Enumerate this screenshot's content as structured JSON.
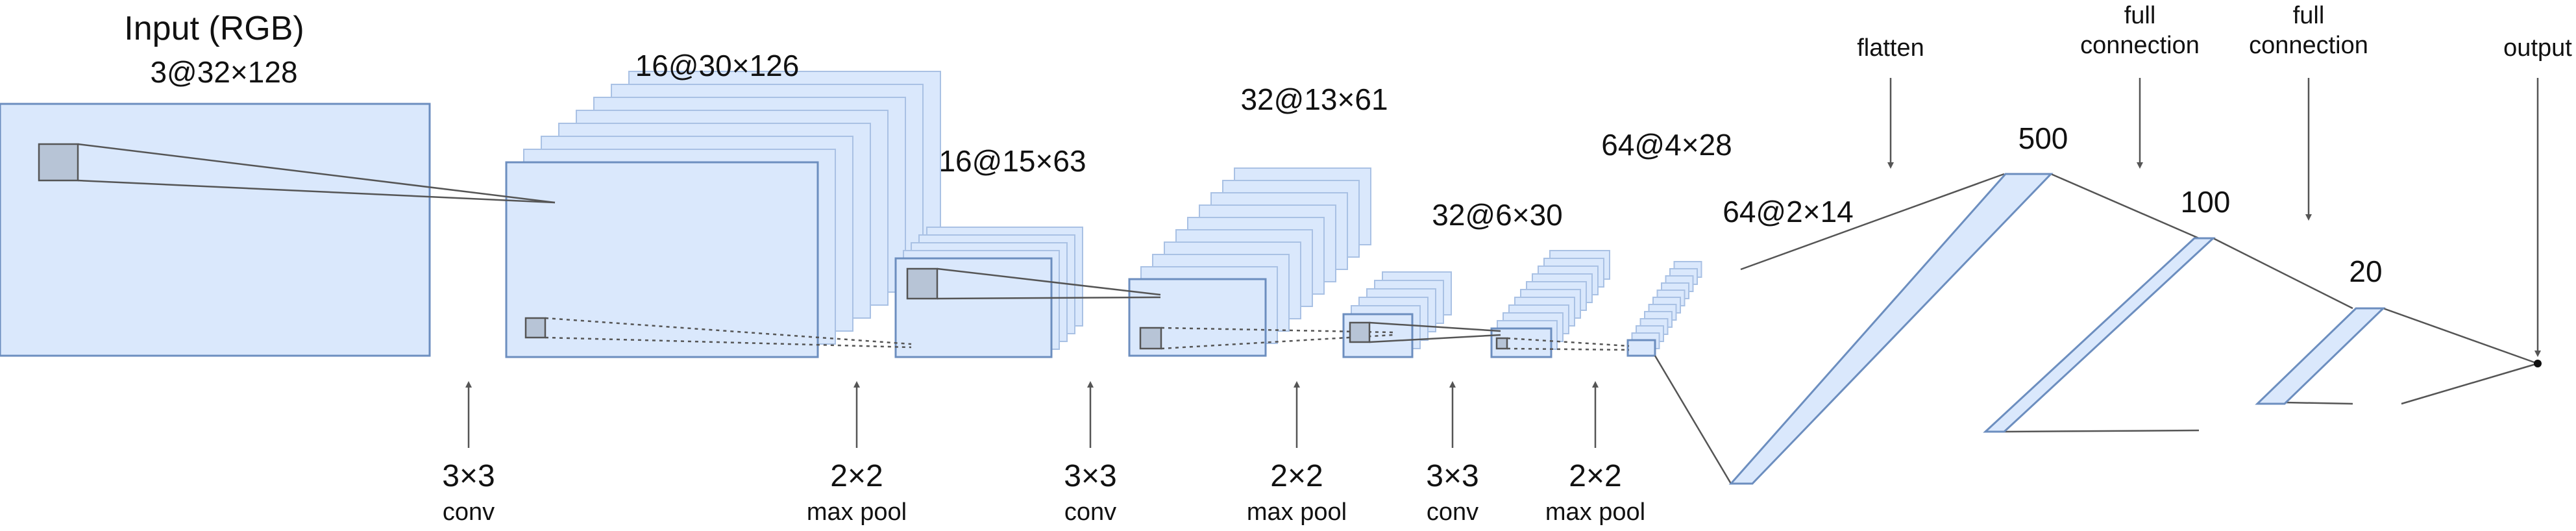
{
  "colors": {
    "fill": "#dae8fc",
    "stroke": "#6c8ebf",
    "stroke_light": "#a9c1e4",
    "kernel": "#b7c4d6",
    "line": "#555555"
  },
  "input_layer": {
    "title": "Input (RGB)",
    "shape": "3@32×128"
  },
  "feature_maps": [
    {
      "shape": "16@30×126"
    },
    {
      "shape": "16@15×63"
    },
    {
      "shape": "32@13×61"
    },
    {
      "shape": "32@6×30"
    },
    {
      "shape": "64@4×28"
    },
    {
      "shape": "64@2×14"
    }
  ],
  "operations": [
    {
      "kernel": "3×3",
      "op": "conv"
    },
    {
      "kernel": "2×2",
      "op": "max pool"
    },
    {
      "kernel": "3×3",
      "op": "conv"
    },
    {
      "kernel": "2×2",
      "op": "max pool"
    },
    {
      "kernel": "3×3",
      "op": "conv"
    },
    {
      "kernel": "2×2",
      "op": "max pool"
    }
  ],
  "dense_layers": [
    {
      "units": "500"
    },
    {
      "units": "100"
    },
    {
      "units": "20"
    }
  ],
  "top_labels": {
    "flatten": "flatten",
    "full_connection_1": [
      "full",
      "connection"
    ],
    "full_connection_2": [
      "full",
      "connection"
    ],
    "output": "output"
  }
}
